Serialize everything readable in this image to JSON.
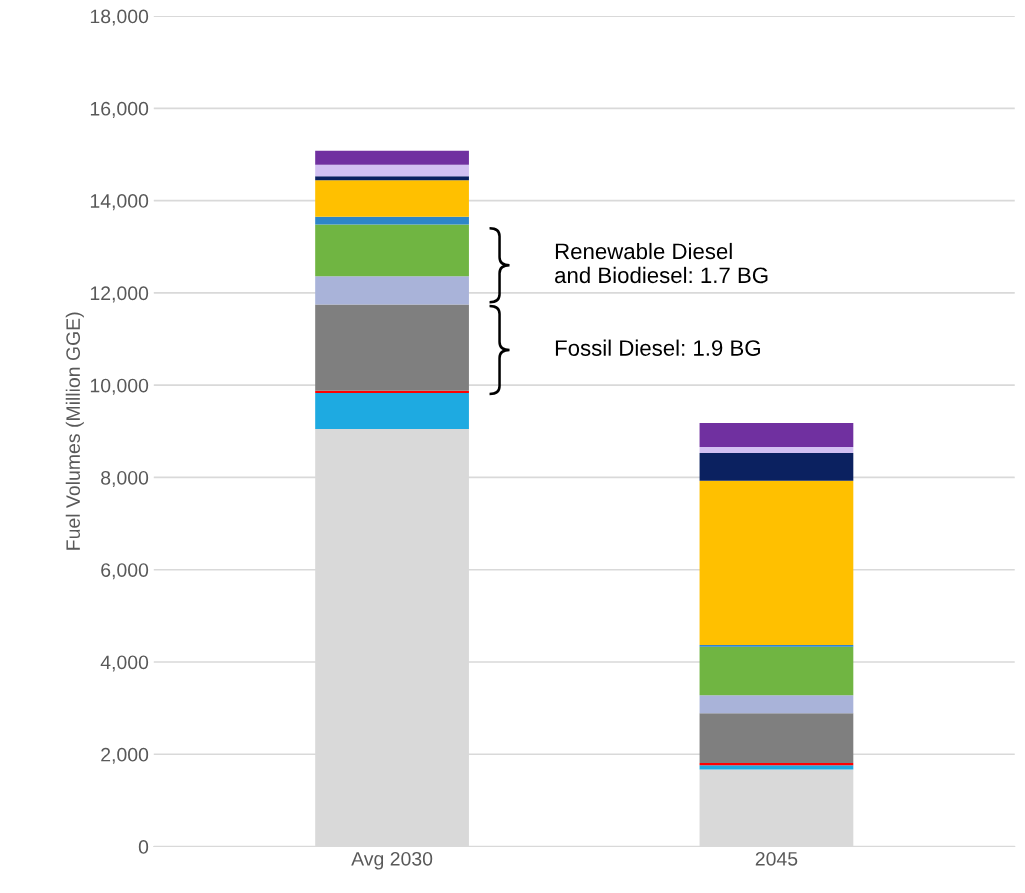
{
  "chart_data": {
    "type": "bar",
    "stacked": true,
    "ylabel": "Fuel Volumes (Million GGE)",
    "categories": [
      "Avg 2030",
      "2045"
    ],
    "series": [
      {
        "color": "#d9d9d9",
        "values": [
          9050,
          1670
        ]
      },
      {
        "color": "#1eaae1",
        "values": [
          780,
          90
        ]
      },
      {
        "color": "#ff0000",
        "values": [
          50,
          50
        ]
      },
      {
        "color": "#7f7f7f",
        "values": [
          1870,
          1080
        ]
      },
      {
        "color": "#a9b3d9",
        "values": [
          610,
          390
        ]
      },
      {
        "color": "#70b542",
        "values": [
          1120,
          1050
        ]
      },
      {
        "color": "#2e86c8",
        "values": [
          170,
          40
        ]
      },
      {
        "color": "#ffc000",
        "values": [
          790,
          3560
        ]
      },
      {
        "color": "#0b2160",
        "values": [
          90,
          600
        ]
      },
      {
        "color": "#d2c0f2",
        "values": [
          250,
          130
        ]
      },
      {
        "color": "#7030a0",
        "values": [
          300,
          520
        ]
      }
    ],
    "ylim": [
      0,
      18000
    ],
    "yticks": [
      0,
      {
        "value": 2000,
        "label": "2,000"
      },
      {
        "value": 4000,
        "label": "4,000"
      },
      {
        "value": 6000,
        "label": "6,000"
      },
      {
        "value": 8000,
        "label": "8,000"
      },
      {
        "value": 10000,
        "label": "10,000"
      },
      {
        "value": 12000,
        "label": "12,000"
      },
      {
        "value": 14000,
        "label": "14,000"
      },
      {
        "value": 16000,
        "label": "16,000"
      },
      {
        "value": 18000,
        "label": "18,000"
      }
    ],
    "grid": "y",
    "annotations": [
      "Renewable Diesel\nand Biodiesel: 1.7 BG",
      "Fossil Diesel: 1.9 BG"
    ]
  }
}
